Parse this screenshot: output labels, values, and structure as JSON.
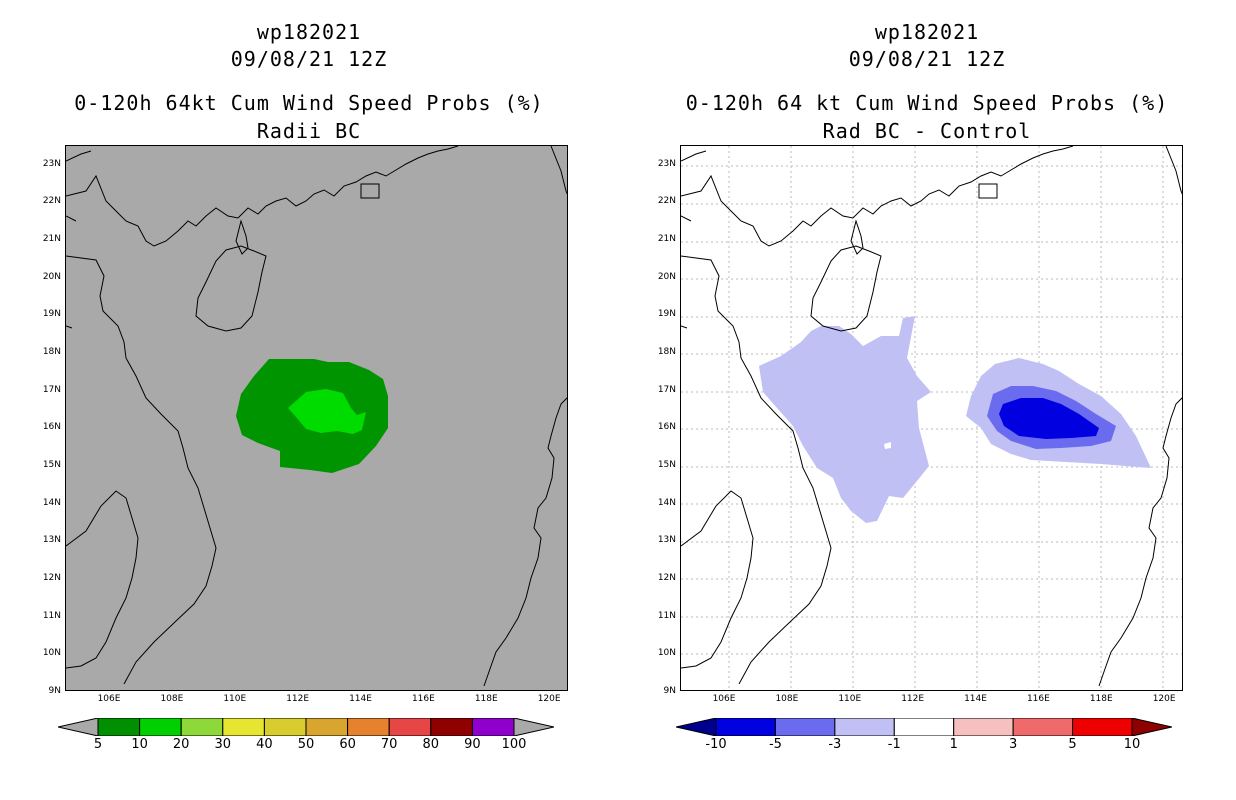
{
  "panels": [
    {
      "storm_id": "wp182021",
      "datetime": "09/08/21 12Z",
      "title": "0-120h 64kt Cum Wind Speed Probs (%)",
      "subtitle": "Radii BC",
      "colorbar": {
        "labels": [
          "5",
          "10",
          "20",
          "30",
          "40",
          "50",
          "60",
          "70",
          "80",
          "90",
          "100"
        ],
        "colors": [
          "#008f00",
          "#00cf00",
          "#8fd83a",
          "#e6e632",
          "#d8cc2e",
          "#d8a62e",
          "#e6822e",
          "#e64646",
          "#8f0000",
          "#8f00cf"
        ]
      }
    },
    {
      "storm_id": "wp182021",
      "datetime": "09/08/21 12Z",
      "title": "0-120h 64 kt Cum Wind Speed Probs (%)",
      "subtitle": "Rad BC - Control",
      "colorbar": {
        "labels": [
          "-10",
          "-5",
          "-3",
          "-1",
          "1",
          "3",
          "5",
          "10"
        ],
        "colors": [
          "#0000e0",
          "#6b6bef",
          "#c0c0f5",
          "#ffffff",
          "#f7c0c0",
          "#ef6b6b",
          "#ef0000"
        ]
      }
    }
  ],
  "axes": {
    "lat_labels": [
      "23N",
      "22N",
      "21N",
      "20N",
      "19N",
      "18N",
      "17N",
      "16N",
      "15N",
      "14N",
      "13N",
      "12N",
      "11N",
      "10N",
      "9N"
    ],
    "lon_labels": [
      "106E",
      "108E",
      "110E",
      "112E",
      "114E",
      "116E",
      "118E",
      "120E"
    ],
    "lat_range": [
      9,
      23.5
    ],
    "lon_range": [
      104.6,
      120.6
    ]
  },
  "colors": {
    "land_ocean_gray": "#a9a9a9",
    "dark_green": "#008f00",
    "light_green": "#00dc00",
    "lavender": "#c0c0f5",
    "mid_blue": "#6b6bef",
    "deep_blue": "#0000e0"
  }
}
